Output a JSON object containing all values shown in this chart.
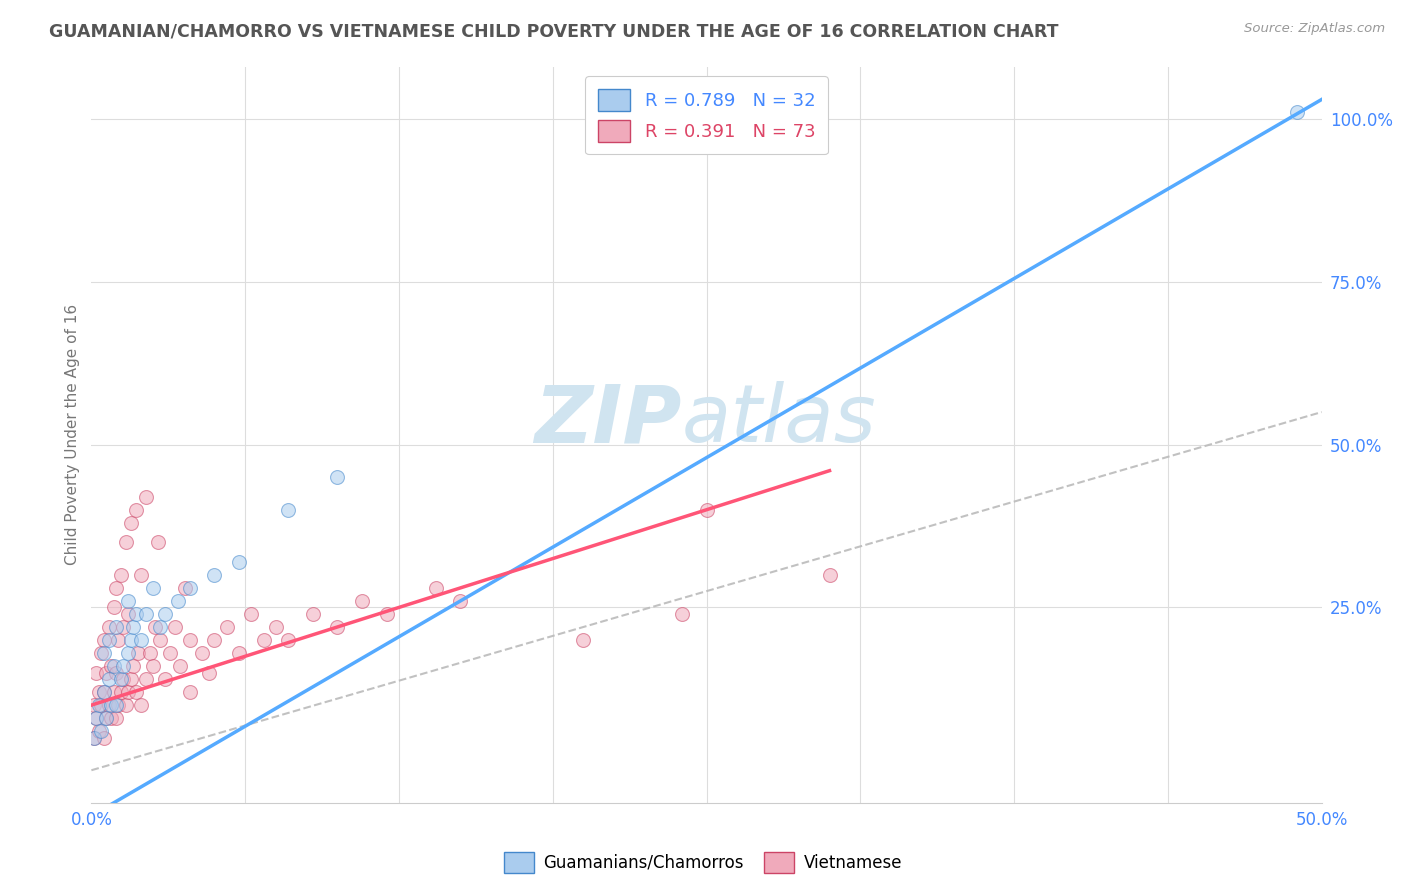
{
  "title": "GUAMANIAN/CHAMORRO VS VIETNAMESE CHILD POVERTY UNDER THE AGE OF 16 CORRELATION CHART",
  "source": "Source: ZipAtlas.com",
  "ylabel": "Child Poverty Under the Age of 16",
  "right_yticks": [
    "100.0%",
    "75.0%",
    "50.0%",
    "25.0%"
  ],
  "right_ytick_vals": [
    1.0,
    0.75,
    0.5,
    0.25
  ],
  "blue_R": 0.789,
  "blue_N": 32,
  "pink_R": 0.391,
  "pink_N": 73,
  "blue_color": "#aaccee",
  "pink_color": "#f0aabb",
  "blue_line_color": "#55aaff",
  "pink_line_color": "#ff5577",
  "blue_edge_color": "#4488cc",
  "pink_edge_color": "#cc4466",
  "grid_color": "#dddddd",
  "title_color": "#555555",
  "watermark_color": "#d0e4f0",
  "background_color": "#ffffff",
  "xmin": 0.0,
  "xmax": 0.5,
  "ymin": -0.05,
  "ymax": 1.08,
  "blue_line_x0": 0.0,
  "blue_line_y0": -0.07,
  "blue_line_x1": 0.5,
  "blue_line_y1": 1.03,
  "pink_line_x0": 0.0,
  "pink_line_y0": 0.1,
  "pink_line_x1": 0.3,
  "pink_line_y1": 0.46,
  "ref_line_x0": 0.0,
  "ref_line_y0": 0.0,
  "ref_line_x1": 0.5,
  "ref_line_y1": 0.55,
  "blue_scatter_x": [
    0.001,
    0.002,
    0.003,
    0.004,
    0.005,
    0.005,
    0.006,
    0.007,
    0.007,
    0.008,
    0.009,
    0.01,
    0.01,
    0.012,
    0.013,
    0.015,
    0.015,
    0.016,
    0.017,
    0.018,
    0.02,
    0.022,
    0.025,
    0.028,
    0.03,
    0.035,
    0.04,
    0.05,
    0.06,
    0.08,
    0.1,
    0.49
  ],
  "blue_scatter_y": [
    0.05,
    0.08,
    0.1,
    0.06,
    0.12,
    0.18,
    0.08,
    0.14,
    0.2,
    0.1,
    0.16,
    0.1,
    0.22,
    0.14,
    0.16,
    0.18,
    0.26,
    0.2,
    0.22,
    0.24,
    0.2,
    0.24,
    0.28,
    0.22,
    0.24,
    0.26,
    0.28,
    0.3,
    0.32,
    0.4,
    0.45,
    1.01
  ],
  "pink_scatter_x": [
    0.001,
    0.001,
    0.002,
    0.002,
    0.003,
    0.003,
    0.004,
    0.004,
    0.005,
    0.005,
    0.005,
    0.006,
    0.006,
    0.007,
    0.007,
    0.008,
    0.008,
    0.009,
    0.009,
    0.01,
    0.01,
    0.01,
    0.011,
    0.011,
    0.012,
    0.012,
    0.013,
    0.013,
    0.014,
    0.014,
    0.015,
    0.015,
    0.016,
    0.016,
    0.017,
    0.018,
    0.018,
    0.019,
    0.02,
    0.02,
    0.022,
    0.022,
    0.024,
    0.025,
    0.026,
    0.027,
    0.028,
    0.03,
    0.032,
    0.034,
    0.036,
    0.038,
    0.04,
    0.04,
    0.045,
    0.048,
    0.05,
    0.055,
    0.06,
    0.065,
    0.07,
    0.075,
    0.08,
    0.09,
    0.1,
    0.11,
    0.12,
    0.14,
    0.15,
    0.2,
    0.24,
    0.25,
    0.3
  ],
  "pink_scatter_y": [
    0.05,
    0.1,
    0.08,
    0.15,
    0.06,
    0.12,
    0.1,
    0.18,
    0.05,
    0.12,
    0.2,
    0.08,
    0.15,
    0.1,
    0.22,
    0.08,
    0.16,
    0.12,
    0.25,
    0.08,
    0.15,
    0.28,
    0.1,
    0.2,
    0.12,
    0.3,
    0.14,
    0.22,
    0.1,
    0.35,
    0.12,
    0.24,
    0.14,
    0.38,
    0.16,
    0.12,
    0.4,
    0.18,
    0.1,
    0.3,
    0.14,
    0.42,
    0.18,
    0.16,
    0.22,
    0.35,
    0.2,
    0.14,
    0.18,
    0.22,
    0.16,
    0.28,
    0.12,
    0.2,
    0.18,
    0.15,
    0.2,
    0.22,
    0.18,
    0.24,
    0.2,
    0.22,
    0.2,
    0.24,
    0.22,
    0.26,
    0.24,
    0.28,
    0.26,
    0.2,
    0.24,
    0.4,
    0.3
  ],
  "marker_size": 100,
  "marker_alpha": 0.55
}
